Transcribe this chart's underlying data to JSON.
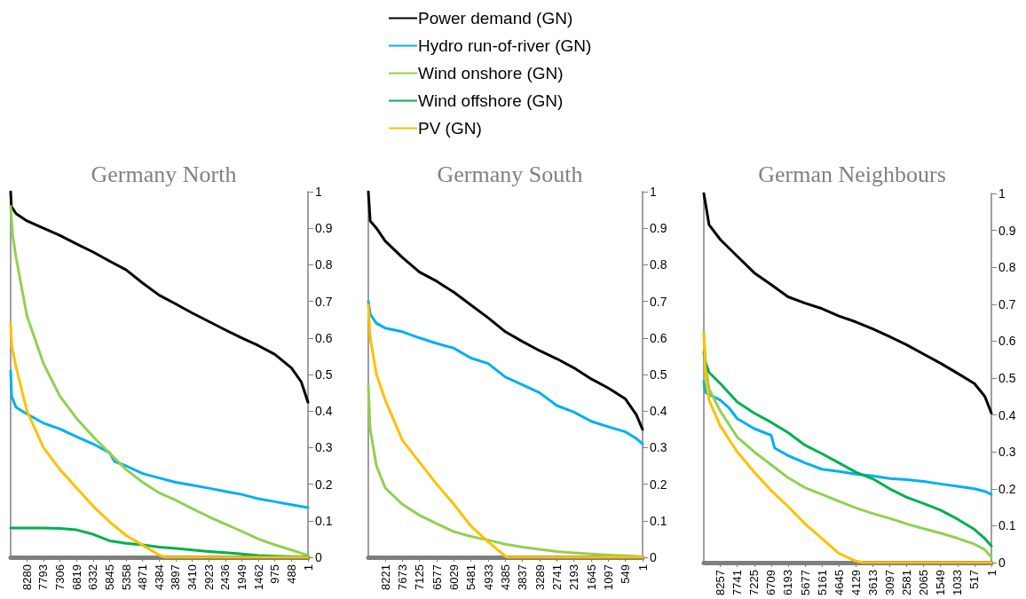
{
  "chart_data": [
    {
      "type": "line",
      "title": "Germany North",
      "legend": "top",
      "marker": "none",
      "grid": false,
      "xlim": [
        8760,
        1
      ],
      "xticks": [
        8280,
        7793,
        7306,
        6819,
        6332,
        5845,
        5358,
        4871,
        4384,
        3897,
        3410,
        2923,
        2436,
        1949,
        1462,
        975,
        488,
        1
      ],
      "ylim": [
        0,
        1
      ],
      "yticks": [
        0,
        0.1,
        0.2,
        0.3,
        0.4,
        0.5,
        0.6,
        0.7,
        0.8,
        0.9,
        1
      ],
      "series": [
        {
          "name": "Power demand (GN)",
          "color": "#000000",
          "x": [
            8760,
            8740,
            8600,
            8280,
            7793,
            7306,
            6819,
            6332,
            5845,
            5358,
            4871,
            4384,
            3897,
            3410,
            2923,
            2436,
            1949,
            1462,
            975,
            488,
            200,
            1
          ],
          "values": [
            1,
            0.96,
            0.94,
            0.92,
            0.9,
            0.88,
            0.857,
            0.835,
            0.81,
            0.786,
            0.75,
            0.717,
            0.693,
            0.668,
            0.645,
            0.622,
            0.6,
            0.579,
            0.555,
            0.518,
            0.48,
            0.424
          ]
        },
        {
          "name": "Hydro run-of-river (GN)",
          "color": "#00b0f0",
          "x": [
            8760,
            8730,
            8600,
            8280,
            7793,
            7306,
            6819,
            6332,
            5845,
            5700,
            5358,
            4871,
            4384,
            3897,
            3410,
            2923,
            2436,
            1949,
            1462,
            975,
            488,
            1
          ],
          "values": [
            0.51,
            0.44,
            0.41,
            0.392,
            0.367,
            0.351,
            0.33,
            0.31,
            0.286,
            0.262,
            0.25,
            0.229,
            0.217,
            0.205,
            0.197,
            0.189,
            0.18,
            0.172,
            0.16,
            0.152,
            0.144,
            0.136
          ]
        },
        {
          "name": "Wind onshore (GN)",
          "color": "#92d050",
          "x": [
            8760,
            8700,
            8600,
            8280,
            7793,
            7306,
            6819,
            6332,
            5845,
            5358,
            4871,
            4384,
            3897,
            3410,
            2923,
            2436,
            1949,
            1462,
            975,
            488,
            1
          ],
          "values": [
            0.96,
            0.88,
            0.82,
            0.66,
            0.53,
            0.44,
            0.38,
            0.33,
            0.285,
            0.24,
            0.205,
            0.176,
            0.156,
            0.133,
            0.111,
            0.091,
            0.071,
            0.05,
            0.034,
            0.02,
            0.005
          ]
        },
        {
          "name": "Wind offshore (GN)",
          "color": "#00b050",
          "x": [
            8760,
            7793,
            7306,
            6819,
            6332,
            5845,
            5358,
            4871,
            4384,
            3897,
            3410,
            2923,
            2436,
            1949,
            1462,
            975,
            488,
            1
          ],
          "values": [
            0.08,
            0.08,
            0.079,
            0.075,
            0.063,
            0.045,
            0.038,
            0.034,
            0.028,
            0.024,
            0.02,
            0.016,
            0.013,
            0.009,
            0.005,
            0.003,
            0.002,
            0.001
          ]
        },
        {
          "name": "PV (GN)",
          "color": "#ffc000",
          "x": [
            8760,
            8730,
            8600,
            8280,
            7793,
            7306,
            6819,
            6332,
            5845,
            5358,
            4871,
            4384,
            4200,
            1
          ],
          "values": [
            0.64,
            0.58,
            0.52,
            0.4,
            0.3,
            0.24,
            0.19,
            0.14,
            0.097,
            0.06,
            0.033,
            0.006,
            0,
            0
          ]
        }
      ]
    },
    {
      "type": "line",
      "title": "Germany South",
      "legend": "top",
      "marker": "none",
      "grid": false,
      "xlim": [
        8760,
        1
      ],
      "xticks": [
        8221,
        7673,
        7125,
        6577,
        6029,
        5481,
        4933,
        4385,
        3837,
        3289,
        2741,
        2193,
        1645,
        1097,
        549,
        1
      ],
      "ylim": [
        0,
        1
      ],
      "yticks": [
        0,
        0.1,
        0.2,
        0.3,
        0.4,
        0.5,
        0.6,
        0.7,
        0.8,
        0.9,
        1
      ],
      "series": [
        {
          "name": "Power demand (GN)",
          "color": "#000000",
          "x": [
            8760,
            8700,
            8500,
            8221,
            7673,
            7125,
            6577,
            6029,
            5481,
            4933,
            4385,
            3837,
            3289,
            2741,
            2193,
            1645,
            1097,
            549,
            200,
            1
          ],
          "values": [
            1,
            0.92,
            0.9,
            0.865,
            0.82,
            0.78,
            0.755,
            0.725,
            0.69,
            0.655,
            0.617,
            0.59,
            0.565,
            0.543,
            0.518,
            0.488,
            0.463,
            0.433,
            0.39,
            0.35
          ]
        },
        {
          "name": "Hydro run-of-river (GN)",
          "color": "#00b0f0",
          "x": [
            8760,
            8700,
            8500,
            8221,
            7673,
            7125,
            6577,
            6029,
            5481,
            4933,
            4385,
            3837,
            3289,
            2741,
            2193,
            1645,
            1097,
            549,
            200,
            1
          ],
          "values": [
            0.7,
            0.665,
            0.64,
            0.627,
            0.617,
            0.6,
            0.585,
            0.572,
            0.545,
            0.53,
            0.493,
            0.472,
            0.45,
            0.415,
            0.397,
            0.372,
            0.357,
            0.343,
            0.325,
            0.31
          ]
        },
        {
          "name": "Wind onshore (GN)",
          "color": "#92d050",
          "x": [
            8760,
            8700,
            8500,
            8221,
            7673,
            7125,
            6577,
            6029,
            5481,
            4933,
            4385,
            3837,
            3289,
            2741,
            2193,
            1645,
            1097,
            549,
            1
          ],
          "values": [
            0.47,
            0.35,
            0.25,
            0.19,
            0.145,
            0.115,
            0.092,
            0.07,
            0.057,
            0.047,
            0.036,
            0.028,
            0.022,
            0.016,
            0.012,
            0.009,
            0.006,
            0.004,
            0.002
          ]
        },
        {
          "name": "PV (GN)",
          "color": "#ffc000",
          "x": [
            8760,
            8700,
            8500,
            8221,
            7673,
            7125,
            6577,
            6029,
            5481,
            4933,
            4385,
            4300,
            1
          ],
          "values": [
            0.69,
            0.6,
            0.5,
            0.43,
            0.32,
            0.26,
            0.2,
            0.145,
            0.085,
            0.042,
            0.003,
            0,
            0
          ]
        }
      ]
    },
    {
      "type": "line",
      "title": "German Neighbours",
      "legend": "top",
      "marker": "none",
      "grid": false,
      "xlim": [
        8760,
        1
      ],
      "xticks": [
        8257,
        7741,
        7225,
        6709,
        6193,
        5677,
        5161,
        4645,
        4129,
        3613,
        3097,
        2581,
        2065,
        1549,
        1033,
        517,
        1
      ],
      "ylim": [
        0,
        1
      ],
      "yticks": [
        0,
        0.1,
        0.2,
        0.3,
        0.4,
        0.5,
        0.6,
        0.7,
        0.8,
        0.9,
        1
      ],
      "series": [
        {
          "name": "Power demand (GN)",
          "color": "#000000",
          "x": [
            8760,
            8600,
            8257,
            7741,
            7225,
            6709,
            6193,
            5677,
            5161,
            4645,
            4129,
            3613,
            3097,
            2581,
            2065,
            1549,
            1033,
            517,
            200,
            1
          ],
          "values": [
            1,
            0.915,
            0.875,
            0.83,
            0.785,
            0.753,
            0.72,
            0.703,
            0.688,
            0.668,
            0.652,
            0.633,
            0.612,
            0.59,
            0.565,
            0.54,
            0.513,
            0.485,
            0.45,
            0.405
          ]
        },
        {
          "name": "Hydro run-of-river (GN)",
          "color": "#00b0f0",
          "x": [
            8760,
            8700,
            8257,
            8000,
            7741,
            7225,
            6709,
            6600,
            6193,
            5677,
            5161,
            4645,
            4129,
            3613,
            3097,
            2581,
            2065,
            1549,
            1033,
            517,
            200,
            1
          ],
          "values": [
            0.49,
            0.46,
            0.44,
            0.42,
            0.39,
            0.363,
            0.345,
            0.31,
            0.29,
            0.27,
            0.253,
            0.247,
            0.24,
            0.235,
            0.228,
            0.225,
            0.22,
            0.213,
            0.207,
            0.2,
            0.193,
            0.185
          ]
        },
        {
          "name": "Wind onshore (GN)",
          "color": "#92d050",
          "x": [
            8760,
            8700,
            8600,
            8257,
            7741,
            7225,
            6709,
            6193,
            5677,
            5161,
            4645,
            4129,
            3613,
            3097,
            2581,
            2065,
            1549,
            1033,
            517,
            200,
            1
          ],
          "values": [
            0.625,
            0.53,
            0.47,
            0.41,
            0.34,
            0.3,
            0.265,
            0.23,
            0.203,
            0.185,
            0.166,
            0.148,
            0.133,
            0.12,
            0.105,
            0.092,
            0.08,
            0.066,
            0.05,
            0.035,
            0.015
          ]
        },
        {
          "name": "Wind offshore (GN)",
          "color": "#00b050",
          "x": [
            8760,
            8720,
            8600,
            8257,
            7741,
            7225,
            6709,
            6193,
            5677,
            5161,
            4645,
            4129,
            3613,
            3097,
            2581,
            2065,
            1549,
            1033,
            517,
            200,
            1
          ],
          "values": [
            0.57,
            0.545,
            0.515,
            0.485,
            0.435,
            0.405,
            0.38,
            0.352,
            0.318,
            0.295,
            0.27,
            0.245,
            0.227,
            0.2,
            0.177,
            0.16,
            0.142,
            0.118,
            0.09,
            0.065,
            0.045
          ]
        },
        {
          "name": "PV (GN)",
          "color": "#ffc000",
          "x": [
            8760,
            8700,
            8600,
            8257,
            7741,
            7225,
            6709,
            6193,
            5677,
            5161,
            4645,
            4129,
            3900,
            1
          ],
          "values": [
            0.62,
            0.5,
            0.44,
            0.37,
            0.3,
            0.245,
            0.195,
            0.152,
            0.105,
            0.065,
            0.025,
            0.004,
            0,
            0
          ]
        }
      ]
    }
  ]
}
